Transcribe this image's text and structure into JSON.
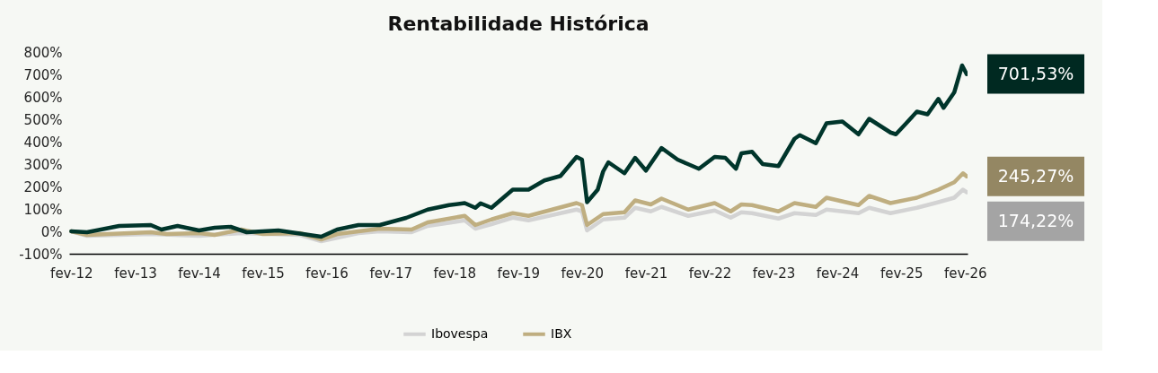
{
  "chart_data": {
    "type": "line",
    "title": "Rentabilidade Histórica",
    "xlim": [
      "2012-01-20",
      "2026-02-15"
    ],
    "xticks": [
      {
        "value": "2012-02-01",
        "label": "fev-12"
      },
      {
        "value": "2013-02-01",
        "label": "fev-13"
      },
      {
        "value": "2014-02-01",
        "label": "fev-14"
      },
      {
        "value": "2015-02-01",
        "label": "fev-15"
      },
      {
        "value": "2016-02-01",
        "label": "fev-16"
      },
      {
        "value": "2017-02-01",
        "label": "fev-17"
      },
      {
        "value": "2018-02-01",
        "label": "fev-18"
      },
      {
        "value": "2019-02-01",
        "label": "fev-19"
      },
      {
        "value": "2020-02-01",
        "label": "fev-20"
      },
      {
        "value": "2021-02-01",
        "label": "fev-21"
      },
      {
        "value": "2022-02-01",
        "label": "fev-22"
      },
      {
        "value": "2023-02-01",
        "label": "fev-23"
      },
      {
        "value": "2024-02-01",
        "label": "fev-24"
      },
      {
        "value": "2025-02-01",
        "label": "fev-25"
      },
      {
        "value": "2026-02-01",
        "label": "fev-26"
      }
    ],
    "ylim": [
      -100,
      800
    ],
    "yticks": [
      {
        "value": -100,
        "label": "-100%"
      },
      {
        "value": 0,
        "label": "0%"
      },
      {
        "value": 100,
        "label": "100%"
      },
      {
        "value": 200,
        "label": "200%"
      },
      {
        "value": 300,
        "label": "300%"
      },
      {
        "value": 400,
        "label": "400%"
      },
      {
        "value": 500,
        "label": "500%"
      },
      {
        "value": 600,
        "label": "600%"
      },
      {
        "value": 700,
        "label": "700%"
      },
      {
        "value": 800,
        "label": "800%"
      }
    ],
    "grid": false,
    "legend": "bottom",
    "marker": "none",
    "line_style": "solid",
    "series": [
      {
        "color": "#00352b",
        "x": [
          "2012-02-01",
          "2012-05-01",
          "2012-11-01",
          "2013-05-01",
          "2013-07-01",
          "2013-10-01",
          "2014-02-01",
          "2014-05-01",
          "2014-08-01",
          "2014-11-01",
          "2015-05-01",
          "2016-01-01",
          "2016-04-01",
          "2016-08-01",
          "2016-12-01",
          "2017-05-01",
          "2017-09-01",
          "2018-01-01",
          "2018-04-01",
          "2018-06-01",
          "2018-07-01",
          "2018-09-01",
          "2019-01-01",
          "2019-04-01",
          "2019-07-01",
          "2019-10-01",
          "2020-01-01",
          "2020-02-01",
          "2020-03-01",
          "2020-05-01",
          "2020-06-01",
          "2020-07-01",
          "2020-10-01",
          "2020-12-01",
          "2021-02-01",
          "2021-05-01",
          "2021-08-01",
          "2021-12-01",
          "2022-03-01",
          "2022-05-01",
          "2022-07-01",
          "2022-08-01",
          "2022-10-01",
          "2022-12-01",
          "2023-03-01",
          "2023-06-01",
          "2023-07-01",
          "2023-10-01",
          "2023-12-01",
          "2024-03-01",
          "2024-06-01",
          "2024-08-01",
          "2024-12-01",
          "2025-01-01",
          "2025-03-01",
          "2025-05-01",
          "2025-07-01",
          "2025-09-01",
          "2025-10-01",
          "2025-12-01",
          "2026-01-15",
          "2026-02-10"
        ],
        "values": [
          0,
          -4,
          24,
          28,
          8,
          24,
          4,
          16,
          20,
          -4,
          4,
          -24,
          8,
          28,
          28,
          60,
          97,
          117,
          126,
          105,
          125,
          105,
          186,
          186,
          227,
          247,
          332,
          320,
          130,
          186,
          267,
          308,
          259,
          328,
          271,
          372,
          320,
          279,
          332,
          328,
          279,
          348,
          355,
          300,
          291,
          413,
          429,
          393,
          482,
          490,
          433,
          502,
          441,
          433,
          482,
          534,
          522,
          591,
          551,
          620,
          740,
          701.53
        ],
        "value_labels": [
          null,
          null,
          null,
          null,
          null,
          null,
          null,
          null,
          null,
          null,
          null,
          null,
          null,
          null,
          null,
          null,
          null,
          null,
          null,
          null,
          null,
          null,
          null,
          null,
          null,
          null,
          null,
          null,
          null,
          null,
          null,
          null,
          null,
          null,
          null,
          null,
          null,
          null,
          null,
          null,
          null,
          null,
          null,
          null,
          null,
          null,
          null,
          null,
          null,
          null,
          null,
          null,
          null,
          null,
          null,
          null,
          null,
          null,
          null,
          null,
          null,
          "701,53%"
        ]
      },
      {
        "name": "Ibovespa",
        "color": "#d3d3d3",
        "x": [
          "2012-02-01",
          "2012-05-01",
          "2013-05-01",
          "2014-02-01",
          "2014-10-01",
          "2015-09-01",
          "2016-01-01",
          "2016-08-01",
          "2016-12-01",
          "2017-06-01",
          "2017-09-01",
          "2018-04-01",
          "2018-06-01",
          "2018-09-01",
          "2019-01-01",
          "2019-04-01",
          "2020-01-01",
          "2020-02-01",
          "2020-03-01",
          "2020-06-01",
          "2020-10-01",
          "2020-12-01",
          "2021-03-01",
          "2021-05-01",
          "2021-10-01",
          "2022-03-01",
          "2022-06-01",
          "2022-08-01",
          "2022-10-01",
          "2023-03-01",
          "2023-06-01",
          "2023-10-01",
          "2023-12-01",
          "2024-06-01",
          "2024-08-01",
          "2024-12-01",
          "2025-05-01",
          "2025-09-01",
          "2025-12-01",
          "2026-01-20",
          "2026-02-10"
        ],
        "values": [
          0,
          -20,
          -12,
          -20,
          -8,
          -16,
          -44,
          -8,
          0,
          -4,
          24,
          49,
          12,
          32,
          61,
          49,
          97,
          89,
          4,
          53,
          61,
          105,
          89,
          109,
          69,
          93,
          61,
          85,
          81,
          57,
          81,
          73,
          97,
          81,
          105,
          81,
          105,
          130,
          150,
          186,
          174.22
        ],
        "value_labels": [
          null,
          null,
          null,
          null,
          null,
          null,
          null,
          null,
          null,
          null,
          null,
          null,
          null,
          null,
          null,
          null,
          null,
          null,
          null,
          null,
          null,
          null,
          null,
          null,
          null,
          null,
          null,
          null,
          null,
          null,
          null,
          null,
          null,
          null,
          null,
          null,
          null,
          null,
          null,
          null,
          "174,22%"
        ]
      },
      {
        "name": "IBX",
        "color": "#bfae80",
        "x": [
          "2012-02-01",
          "2012-05-01",
          "2013-05-01",
          "2013-08-01",
          "2014-02-01",
          "2014-05-01",
          "2014-10-01",
          "2015-02-01",
          "2015-09-01",
          "2016-01-01",
          "2016-04-01",
          "2016-08-01",
          "2016-12-01",
          "2017-06-01",
          "2017-09-01",
          "2018-04-01",
          "2018-06-01",
          "2018-09-01",
          "2019-01-01",
          "2019-04-01",
          "2020-01-01",
          "2020-02-01",
          "2020-03-01",
          "2020-06-01",
          "2020-10-01",
          "2020-12-01",
          "2021-03-01",
          "2021-05-01",
          "2021-10-01",
          "2022-03-01",
          "2022-06-01",
          "2022-08-01",
          "2022-10-01",
          "2023-03-01",
          "2023-06-01",
          "2023-10-01",
          "2023-12-01",
          "2024-06-01",
          "2024-08-01",
          "2024-12-01",
          "2025-05-01",
          "2025-09-01",
          "2025-12-01",
          "2026-01-20",
          "2026-02-10"
        ],
        "values": [
          0,
          -16,
          -4,
          -12,
          -8,
          -16,
          8,
          -12,
          -8,
          -36,
          -12,
          0,
          12,
          8,
          40,
          69,
          28,
          53,
          81,
          69,
          126,
          117,
          28,
          77,
          85,
          138,
          120,
          146,
          97,
          126,
          89,
          120,
          117,
          89,
          126,
          109,
          150,
          117,
          158,
          126,
          150,
          186,
          219,
          259,
          245.27
        ],
        "value_labels": [
          null,
          null,
          null,
          null,
          null,
          null,
          null,
          null,
          null,
          null,
          null,
          null,
          null,
          null,
          null,
          null,
          null,
          null,
          null,
          null,
          null,
          null,
          null,
          null,
          null,
          null,
          null,
          null,
          null,
          null,
          null,
          null,
          null,
          null,
          null,
          null,
          null,
          null,
          null,
          null,
          null,
          null,
          null,
          null,
          "245,27%"
        ]
      }
    ]
  }
}
